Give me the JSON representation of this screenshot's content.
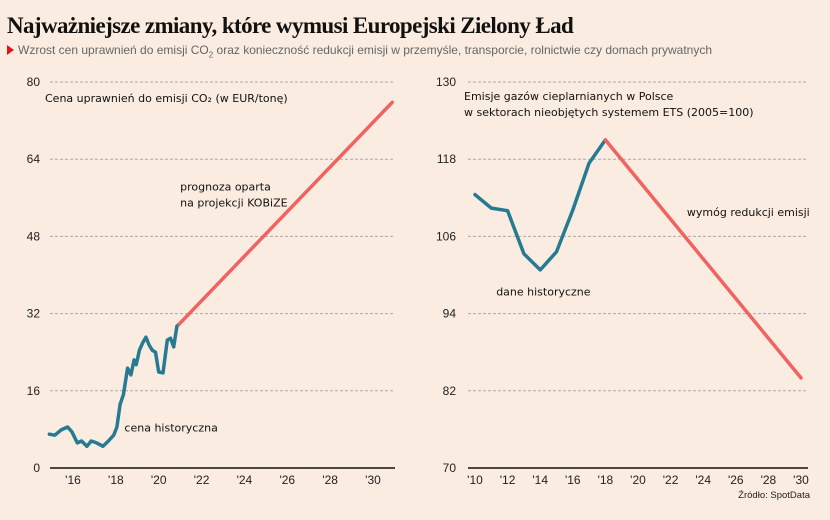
{
  "header": {
    "title": "Najważniejsze zmiany, które wymusi Europejski Zielony Ład",
    "subtitle_before": "Wzrost cen uprawnień do emisji CO",
    "subtitle_sub": "2",
    "subtitle_after": " oraz konieczność redukcji emisji w przemyśle, transporcie, rolnictwie czy domach prywatnych"
  },
  "colors": {
    "background": "#faece0",
    "historical": "#267b93",
    "forecast": "#f06360",
    "bullet": "#e3151a"
  },
  "source": "Źródło: SpotData",
  "chart_data": [
    {
      "type": "line",
      "title": "Cena uprawnień do emisji CO₂ (w EUR/tonę)",
      "xlabel": "",
      "ylabel": "",
      "xlim": [
        2014.9,
        2031.0
      ],
      "ylim": [
        0,
        80
      ],
      "yticks": [
        0,
        16,
        32,
        48,
        64,
        80
      ],
      "xticks": [
        2016,
        2018,
        2020,
        2022,
        2024,
        2026,
        2028,
        2030
      ],
      "xtick_labels": [
        "'16",
        "'18",
        "'20",
        "'22",
        "'24",
        "'26",
        "'28",
        "'30"
      ],
      "grid": true,
      "annotations": [
        {
          "text": "prognoza oparta",
          "x": 2021.0,
          "y": 57.5
        },
        {
          "text": "na projekcji KOBiZE",
          "x": 2021.0,
          "y": 54.2
        },
        {
          "text": "cena historyczna",
          "x": 2018.4,
          "y": 7.6
        }
      ],
      "series": [
        {
          "name": "cena historyczna",
          "color": "#267b93",
          "x": [
            2014.9,
            2015.15,
            2015.45,
            2015.75,
            2015.95,
            2016.2,
            2016.4,
            2016.65,
            2016.85,
            2017.1,
            2017.4,
            2017.65,
            2017.9,
            2018.05,
            2018.2,
            2018.35,
            2018.55,
            2018.7,
            2018.85,
            2018.95,
            2019.1,
            2019.25,
            2019.4,
            2019.55,
            2019.7,
            2019.85,
            2020.0,
            2020.2,
            2020.4,
            2020.55,
            2020.7,
            2020.85,
            2020.95
          ],
          "values": [
            7.0,
            6.8,
            7.9,
            8.5,
            7.5,
            5.2,
            5.6,
            4.5,
            5.6,
            5.2,
            4.5,
            5.6,
            6.8,
            8.5,
            13.2,
            15.2,
            20.7,
            19.3,
            22.4,
            21.4,
            24.4,
            25.9,
            27.1,
            25.5,
            24.4,
            24.0,
            19.9,
            19.7,
            26.5,
            26.9,
            25.1,
            29.4,
            29.8
          ]
        },
        {
          "name": "prognoza oparta na projekcji KOBiZE",
          "color": "#f06360",
          "x": [
            2020.95,
            2030.9
          ],
          "values": [
            29.8,
            75.8
          ]
        }
      ]
    },
    {
      "type": "line",
      "title": "Emisje gazów cieplarnianych w Polsce w sektorach nieobjętych systemem ETS (2005=100)",
      "title_lines": [
        "Emisje gazów cieplarnianych w Polsce",
        "w sektorach nieobjętych systemem ETS (2005=100)"
      ],
      "xlabel": "",
      "ylabel": "",
      "xlim": [
        2010,
        2030
      ],
      "ylim": [
        70,
        130
      ],
      "yticks": [
        70,
        82,
        94,
        106,
        118,
        130
      ],
      "xticks": [
        2010,
        2012,
        2014,
        2016,
        2018,
        2020,
        2022,
        2024,
        2026,
        2028,
        2030
      ],
      "xtick_labels": [
        "'10",
        "'12",
        "'14",
        "'16",
        "'18",
        "'20",
        "'22",
        "'24",
        "'26",
        "'28",
        "'30"
      ],
      "grid": true,
      "annotations": [
        {
          "text": "dane historyczne",
          "x": 2011.3,
          "y": 96.8
        },
        {
          "text": "wymóg redukcji emisji",
          "x": 2023.0,
          "y": 109.2
        }
      ],
      "series": [
        {
          "name": "dane historyczne",
          "color": "#267b93",
          "x": [
            2010,
            2011,
            2012,
            2013,
            2014,
            2015,
            2016,
            2017,
            2018
          ],
          "values": [
            112.5,
            110.4,
            110.0,
            103.3,
            100.8,
            103.6,
            110.1,
            117.4,
            121.0
          ]
        },
        {
          "name": "wymóg redukcji emisji",
          "color": "#f06360",
          "x": [
            2018,
            2030
          ],
          "values": [
            121.0,
            84.0
          ]
        }
      ]
    }
  ]
}
